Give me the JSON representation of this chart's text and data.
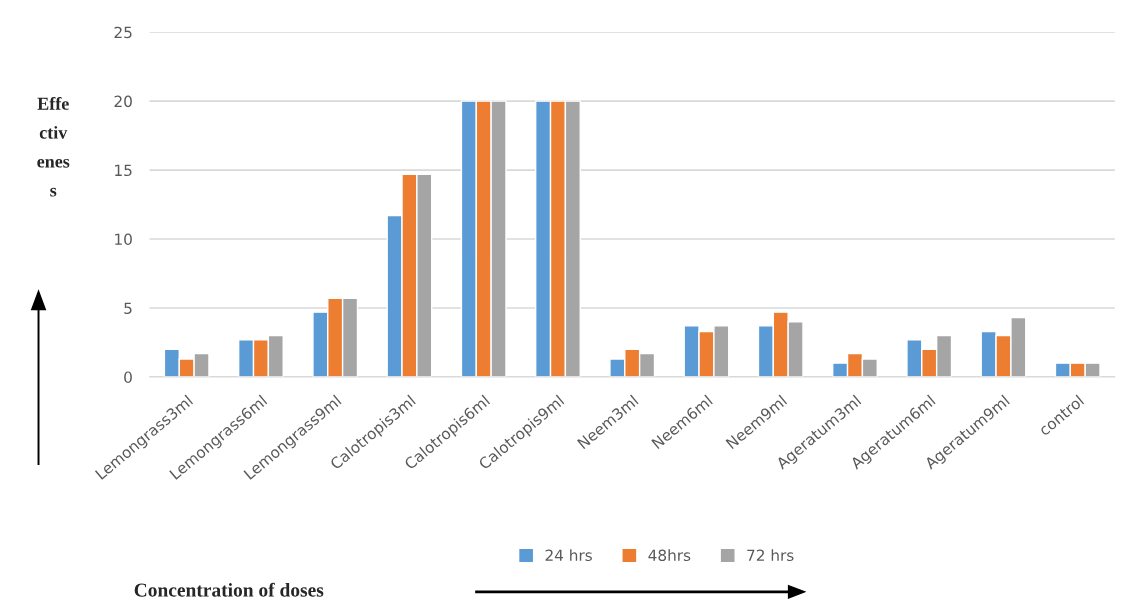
{
  "chart_data": {
    "type": "bar",
    "ylabel": "Effe\nctiv\nenes\ns",
    "annotations": [
      "Concentration of doses"
    ],
    "categories": [
      "Lemongrass3ml",
      "Lemongrass6ml",
      "Lemongrass9ml",
      "Calotropis3ml",
      "Calotropis6ml",
      "Calotropis9ml",
      "Neem3ml",
      "Neem6ml",
      "Neem9ml",
      "Ageratum3ml",
      "Ageratum6ml",
      "Ageratum9ml",
      "control"
    ],
    "series": [
      {
        "name": "24 hrs",
        "color": "#5b9bd5",
        "values": [
          2,
          2.7,
          4.7,
          11.7,
          20,
          20,
          1.3,
          3.7,
          3.7,
          1,
          2.7,
          3.3,
          1
        ]
      },
      {
        "name": "48hrs",
        "color": "#ed7d31",
        "values": [
          1.3,
          2.7,
          5.7,
          14.7,
          20,
          20,
          2,
          3.3,
          4.7,
          1.7,
          2,
          3,
          1
        ]
      },
      {
        "name": "72 hrs",
        "color": "#a5a5a5",
        "values": [
          1.7,
          3,
          5.7,
          14.7,
          20,
          20,
          1.7,
          3.7,
          4,
          1.3,
          3,
          4.3,
          1
        ]
      }
    ],
    "ylim": [
      0,
      25
    ],
    "yticks": [
      0,
      5,
      10,
      15,
      20,
      25
    ],
    "grid": "y",
    "legend": "bottom"
  }
}
